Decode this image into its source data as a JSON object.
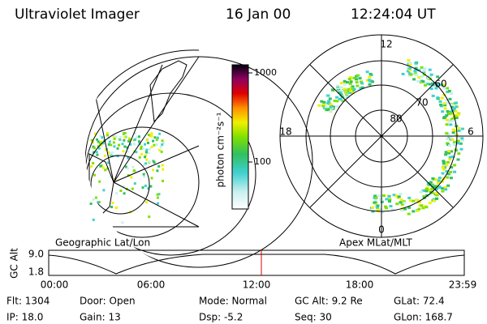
{
  "header": {
    "instrument": "Ultraviolet Imager",
    "date": "16 Jan 00",
    "time": "12:24:04 UT"
  },
  "colorbar": {
    "label": "photon cm⁻²s⁻¹",
    "ticks": [
      "1000",
      "100"
    ]
  },
  "left_panel": {
    "caption": "Geographic Lat/Lon"
  },
  "right_panel": {
    "caption": "Apex MLat/MLT",
    "mlt_labels": [
      "12",
      "18",
      "6",
      "0"
    ],
    "mlat_labels": [
      "60",
      "70",
      "80"
    ]
  },
  "altitude_plot": {
    "label": "GC Alt",
    "yticks": [
      "9.0",
      "1.8"
    ],
    "xticks": [
      "00:00",
      "06:00",
      "12:00",
      "18:00",
      "23:59"
    ]
  },
  "status": [
    [
      "Flt: 1304",
      "IP: 18.0"
    ],
    [
      "Door: Open",
      "Gain: 13"
    ],
    [
      "Mode: Normal",
      "Dsp: -5.2"
    ],
    [
      "GC Alt: 9.2 Re",
      "Seq: 30"
    ],
    [
      "GLat: 72.4",
      "GLon: 168.7"
    ]
  ]
}
